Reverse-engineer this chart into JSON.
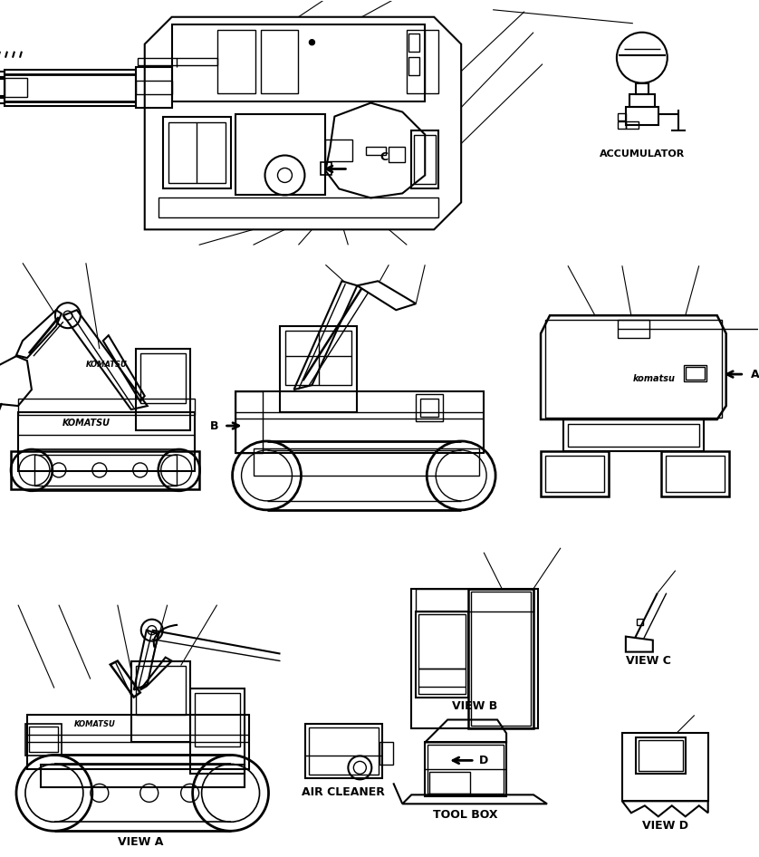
{
  "bg_color": "#ffffff",
  "line_color": "#000000",
  "fig_width": 8.38,
  "fig_height": 9.46,
  "labels": {
    "accumulator": "ACCUMULATOR",
    "view_a": "VIEW A",
    "air_cleaner": "AIR CLEANER",
    "tool_box": "TOOL BOX",
    "view_b": "VIEW B",
    "view_c": "VIEW C",
    "view_d": "VIEW D",
    "label_b": "B",
    "label_a": "A",
    "label_c": "C",
    "label_d": "D"
  }
}
